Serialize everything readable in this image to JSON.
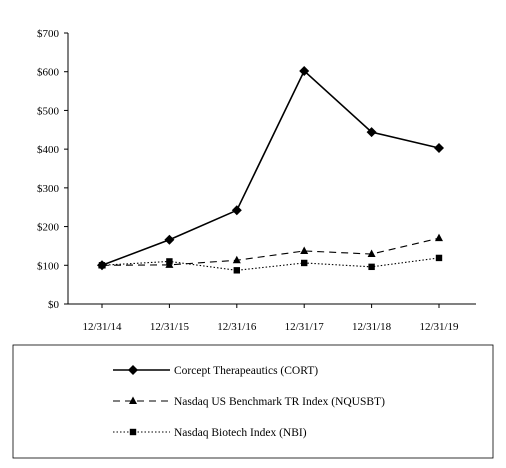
{
  "chart_data": {
    "type": "line",
    "title": "",
    "xlabel": "",
    "ylabel": "",
    "categories": [
      "12/31/14",
      "12/31/15",
      "12/31/16",
      "12/31/17",
      "12/31/18",
      "12/31/19"
    ],
    "y_ticks": [
      "$0",
      "$100",
      "$200",
      "$300",
      "$400",
      "$500",
      "$600",
      "$700"
    ],
    "ylim": [
      0,
      700
    ],
    "grid": false,
    "legend_position": "bottom",
    "series": [
      {
        "name": "Corcept Therapeautics (CORT)",
        "marker": "diamond",
        "line_style": "solid",
        "values": [
          100,
          166,
          242,
          602,
          444,
          403
        ]
      },
      {
        "name": "Nasdaq US Benchmark TR Index (NQUSBT)",
        "marker": "triangle",
        "line_style": "dashed",
        "values": [
          100,
          101,
          113,
          137,
          129,
          170
        ]
      },
      {
        "name": "Nasdaq Biotech Index (NBI)",
        "marker": "square",
        "line_style": "dotted",
        "values": [
          100,
          110,
          87,
          106,
          96,
          119
        ]
      }
    ],
    "line_color": "#000000"
  }
}
